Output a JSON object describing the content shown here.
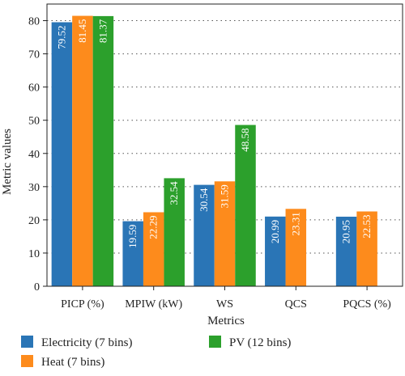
{
  "chart_data": {
    "type": "bar",
    "title": "",
    "xlabel": "Metrics",
    "ylabel": "Metric values",
    "ylim": [
      0,
      85
    ],
    "yticks": [
      0,
      10,
      20,
      30,
      40,
      50,
      60,
      70,
      80
    ],
    "grid": "dotted-horizontal",
    "legend_position": "bottom",
    "categories": [
      "PICP (%)",
      "MPIW (kW)",
      "WS",
      "QCS",
      "PQCS (%)"
    ],
    "series": [
      {
        "name": "Electricity (7 bins)",
        "color": "#2a75b6",
        "values": [
          79.52,
          19.59,
          30.54,
          20.99,
          20.95
        ]
      },
      {
        "name": "Heat (7 bins)",
        "color": "#fd8b1c",
        "values": [
          81.45,
          22.29,
          31.59,
          23.31,
          22.53
        ]
      },
      {
        "name": "PV (12 bins)",
        "color": "#2ca02c",
        "values": [
          81.37,
          32.54,
          48.58,
          null,
          null
        ]
      }
    ]
  }
}
